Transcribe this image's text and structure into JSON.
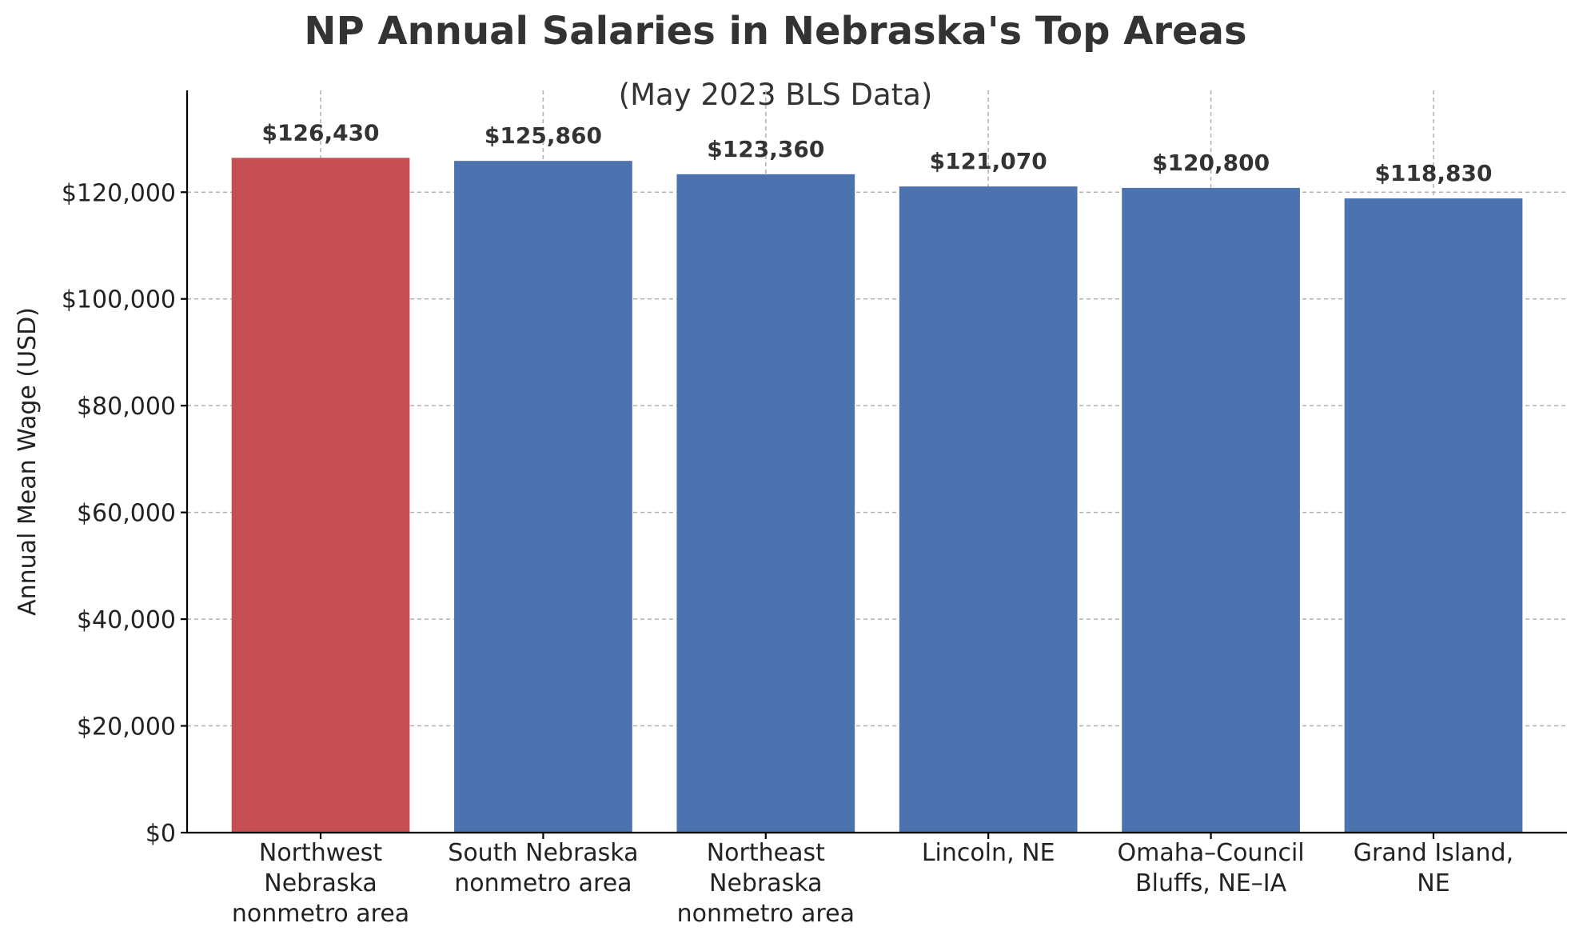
{
  "chart_data": {
    "type": "bar",
    "title": "NP Annual Salaries in Nebraska's Top Areas",
    "subtitle": "(May 2023 BLS Data)",
    "xlabel": "",
    "ylabel": "Annual Mean Wage (USD)",
    "categories": [
      [
        "Northwest",
        "Nebraska",
        "nonmetro area"
      ],
      [
        "South Nebraska",
        "nonmetro area"
      ],
      [
        "Northeast",
        "Nebraska",
        "nonmetro area"
      ],
      [
        "Lincoln, NE"
      ],
      [
        "Omaha–Council",
        "Bluffs, NE–IA"
      ],
      [
        "Grand Island,",
        "NE"
      ]
    ],
    "values": [
      126430,
      125860,
      123360,
      121070,
      120800,
      118830
    ],
    "value_labels": [
      "$126,430",
      "$125,860",
      "$123,360",
      "$121,070",
      "$120,800",
      "$118,830"
    ],
    "bar_colors": [
      "#c44e52",
      "#4c72b0",
      "#4c72b0",
      "#4c72b0",
      "#4c72b0",
      "#4c72b0"
    ],
    "ylim": [
      0,
      139073
    ],
    "yticks": [
      0,
      20000,
      40000,
      60000,
      80000,
      100000,
      120000
    ],
    "ytick_labels": [
      "$0",
      "$20,000",
      "$40,000",
      "$60,000",
      "$80,000",
      "$100,000",
      "$120,000"
    ],
    "grid": true,
    "grid_style": "dashed",
    "legend": "none"
  }
}
